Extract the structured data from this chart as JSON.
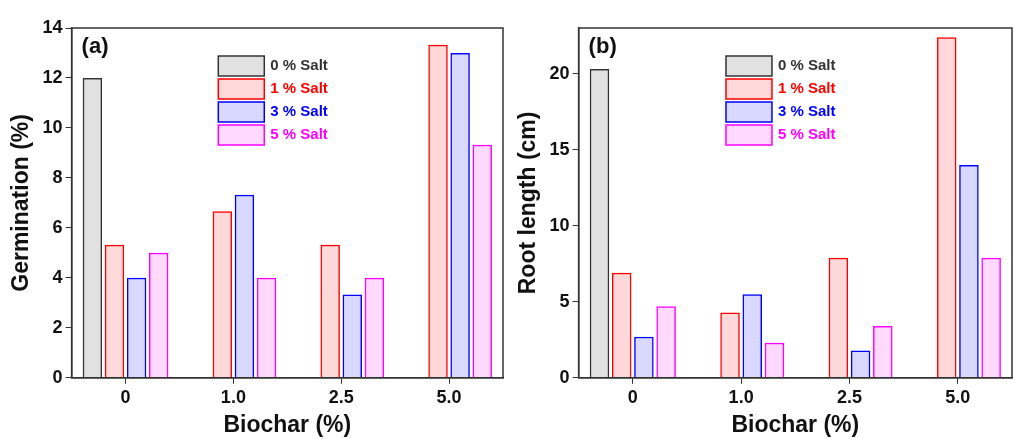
{
  "chart_data": [
    {
      "type": "bar",
      "xlabel": "Biochar (%)",
      "ylabel": "Germination (%)",
      "annotations": [
        "(a)"
      ],
      "categories": [
        "0",
        "1.0",
        "2.5",
        "5.0"
      ],
      "ylim": [
        0,
        14
      ],
      "yticks": [
        0,
        2,
        4,
        6,
        8,
        10,
        12,
        14
      ],
      "grid": false,
      "legend": "top",
      "series": [
        {
          "name": "0 % Salt",
          "color": "#333333",
          "values": [
            12,
            null,
            null,
            null
          ]
        },
        {
          "name": "1 % Salt",
          "color": "#ff0000",
          "values": [
            5.33,
            6.67,
            5.33,
            13.33
          ]
        },
        {
          "name": "3 % Salt",
          "color": "#0000ff",
          "values": [
            4,
            7.33,
            3.33,
            13
          ]
        },
        {
          "name": "5 % Salt",
          "color": "#ff00ff",
          "values": [
            5,
            4,
            4,
            9.33
          ]
        }
      ]
    },
    {
      "type": "bar",
      "xlabel": "Biochar (%)",
      "ylabel": "Root length (cm)",
      "annotations": [
        "(b)"
      ],
      "categories": [
        "0",
        "1.0",
        "2.5",
        "5.0"
      ],
      "ylim": [
        0,
        23
      ],
      "yticks": [
        0,
        5,
        10,
        15,
        20
      ],
      "grid": false,
      "legend": "top",
      "series": [
        {
          "name": "0 % Salt",
          "color": "#333333",
          "values": [
            20.3,
            null,
            null,
            null
          ]
        },
        {
          "name": "1 % Salt",
          "color": "#ff0000",
          "values": [
            6.9,
            4.3,
            7.9,
            22.4
          ]
        },
        {
          "name": "3 % Salt",
          "color": "#0000ff",
          "values": [
            2.7,
            5.5,
            1.8,
            14
          ]
        },
        {
          "name": "5 % Salt",
          "color": "#ff00ff",
          "values": [
            4.7,
            2.3,
            3.4,
            7.9
          ]
        }
      ]
    }
  ]
}
